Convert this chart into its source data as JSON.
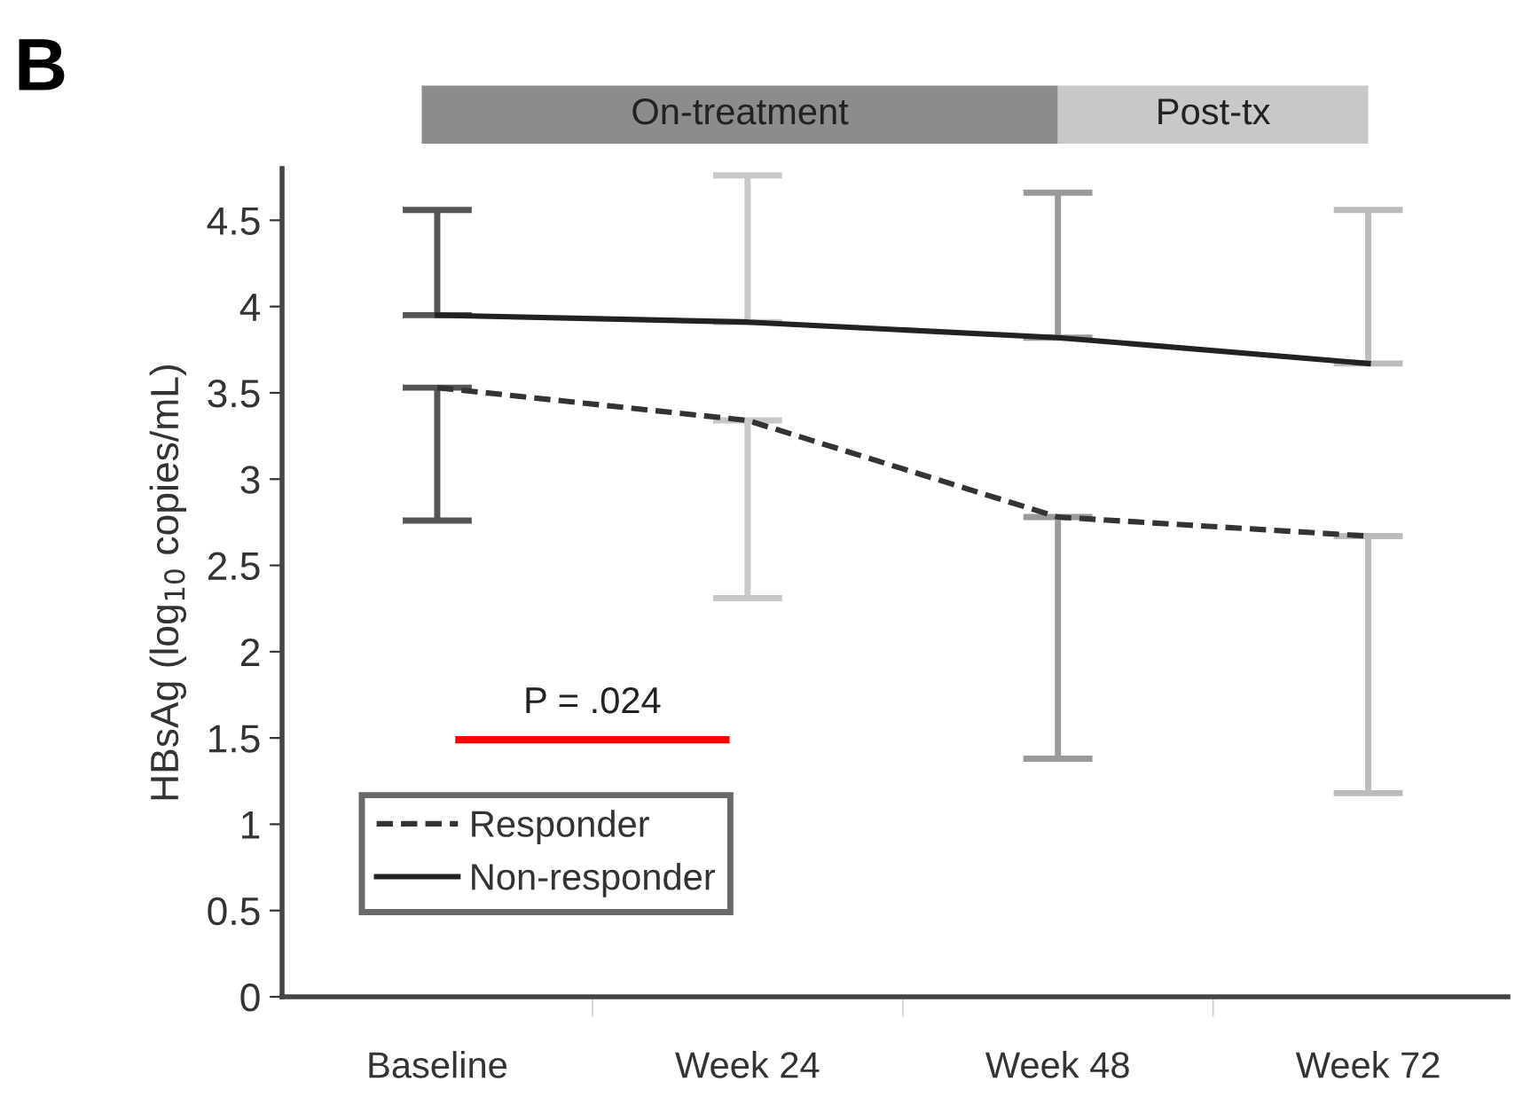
{
  "chart_data": {
    "type": "line",
    "categories": [
      "Baseline",
      "Week 24",
      "Week 48",
      "Week 72"
    ],
    "ylabel": "HBsAg (log$_{10}$ copies/mL)",
    "ylim": [
      0,
      4.8
    ],
    "yticks": [
      0,
      0.5,
      1,
      1.5,
      2,
      2.5,
      3,
      3.5,
      4,
      4.5
    ],
    "series": [
      {
        "name": "Responder",
        "color": "#333333",
        "line_style": "dashed",
        "values": [
          3.53,
          3.34,
          2.78,
          2.67
        ],
        "errors": [
          [
            2.76,
            3.53
          ],
          [
            2.31,
            3.34
          ],
          [
            1.38,
            2.78
          ],
          [
            1.18,
            2.67
          ]
        ]
      },
      {
        "name": "Non-responder",
        "color": "#222222",
        "line_style": "solid",
        "values": [
          3.95,
          3.91,
          3.82,
          3.67
        ],
        "errors": [
          [
            3.95,
            4.56
          ],
          [
            3.91,
            4.76
          ],
          [
            3.82,
            4.66
          ],
          [
            3.67,
            4.56
          ]
        ]
      }
    ],
    "annotations": [
      "B",
      "P = .024",
      "On-treatment",
      "Post-tx"
    ],
    "legend": "bottom left",
    "marker": "none",
    "grid": false
  }
}
